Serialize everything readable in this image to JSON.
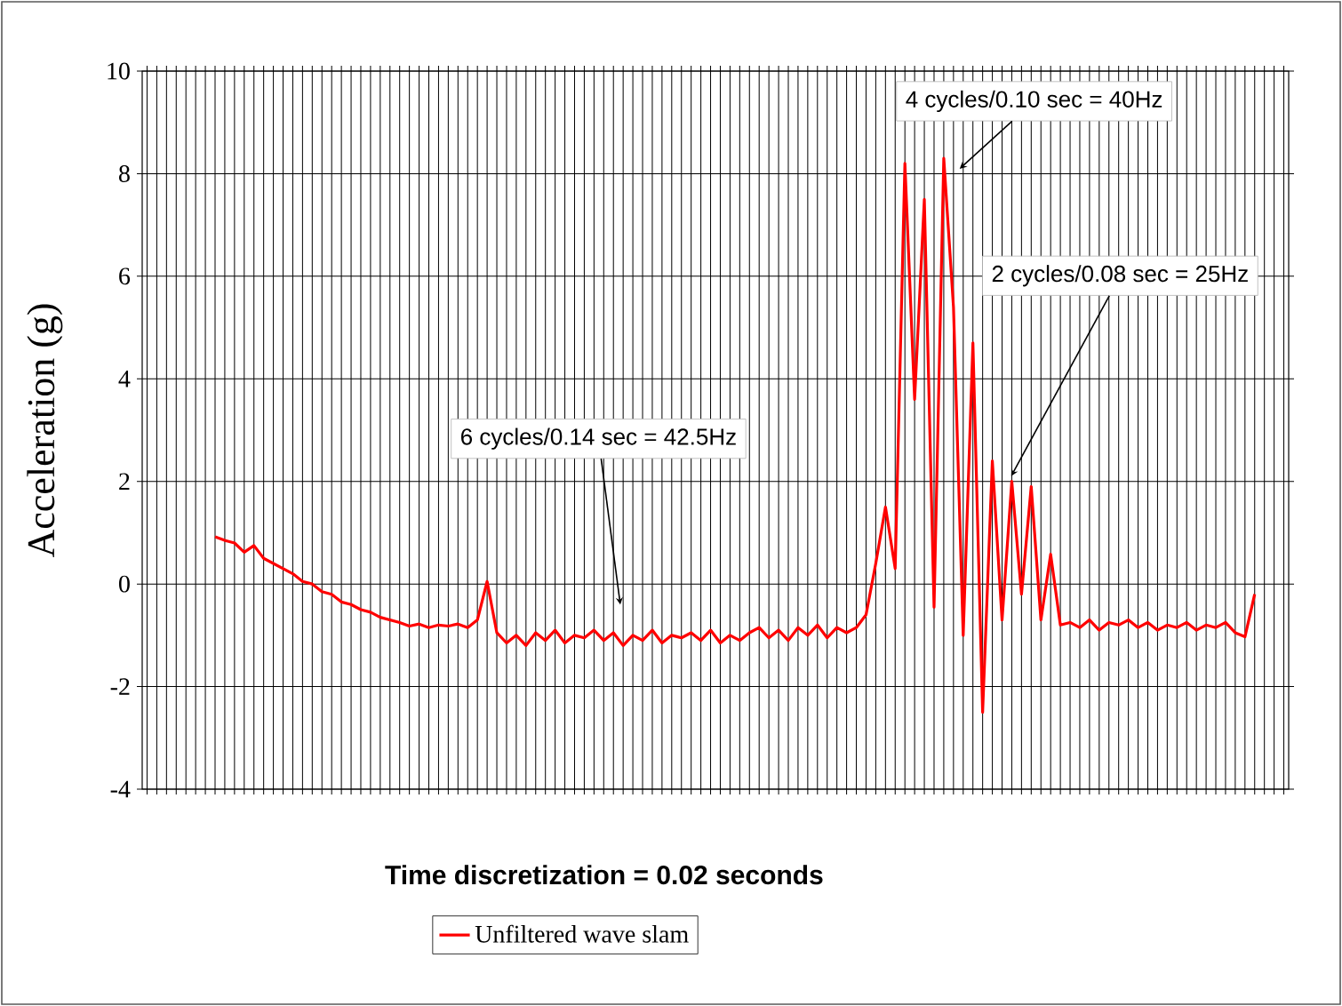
{
  "chart_data": {
    "type": "line",
    "xlabel": "Time discretization = 0.02 seconds",
    "ylabel": "Acceleration (g)",
    "categories": [
      null,
      null,
      null,
      null,
      null,
      null,
      null,
      null,
      null,
      null,
      null,
      null,
      null,
      null,
      null,
      null,
      null,
      null,
      null,
      null,
      null,
      null,
      null,
      null,
      null,
      null,
      null,
      null,
      null,
      null,
      null,
      null,
      null,
      null,
      null,
      null,
      null,
      null,
      null,
      null,
      null,
      null,
      null,
      null,
      null,
      null,
      null,
      null,
      null,
      null,
      null,
      null,
      null,
      null,
      null,
      null,
      null,
      null,
      null,
      null,
      null,
      null,
      null,
      null,
      null,
      null,
      null,
      null,
      null,
      null,
      null,
      null,
      null,
      null,
      null,
      null,
      null,
      null,
      null,
      null,
      null,
      null,
      null,
      null,
      null,
      null,
      null,
      null,
      null,
      null,
      null,
      null,
      null,
      null,
      null,
      null,
      null,
      null,
      null,
      null,
      null,
      null,
      null,
      null,
      null,
      null,
      null,
      null,
      null,
      null,
      null,
      null,
      null,
      null,
      null,
      null,
      null,
      null
    ],
    "series": [
      {
        "name": "Unfiltered wave slam",
        "color": "#ff0000",
        "values": [
          null,
          null,
          null,
          null,
          null,
          null,
          null,
          0.92,
          0.85,
          0.8,
          0.62,
          0.75,
          0.5,
          0.4,
          0.3,
          0.2,
          0.05,
          0.0,
          -0.15,
          -0.2,
          -0.35,
          -0.4,
          -0.5,
          -0.55,
          -0.65,
          -0.7,
          -0.75,
          -0.82,
          -0.78,
          -0.85,
          -0.8,
          -0.82,
          -0.78,
          -0.85,
          -0.7,
          0.05,
          -0.95,
          -1.15,
          -1.0,
          -1.2,
          -0.95,
          -1.1,
          -0.9,
          -1.15,
          -1.0,
          -1.05,
          -0.9,
          -1.1,
          -0.95,
          -1.2,
          -1.0,
          -1.1,
          -0.9,
          -1.15,
          -1.0,
          -1.05,
          -0.95,
          -1.1,
          -0.9,
          -1.15,
          -1.0,
          -1.1,
          -0.95,
          -0.85,
          -1.05,
          -0.9,
          -1.1,
          -0.85,
          -1.0,
          -0.8,
          -1.05,
          -0.85,
          -0.95,
          -0.85,
          -0.6,
          0.4,
          1.5,
          0.3,
          8.2,
          3.6,
          7.5,
          -0.45,
          8.3,
          5.4,
          -1.0,
          4.7,
          -2.5,
          2.4,
          -0.7,
          2.0,
          -0.2,
          1.9,
          -0.7,
          0.58,
          -0.8,
          -0.75,
          -0.85,
          -0.7,
          -0.9,
          -0.75,
          -0.8,
          -0.7,
          -0.85,
          -0.75,
          -0.9,
          -0.8,
          -0.85,
          -0.75,
          -0.9,
          -0.8,
          -0.85,
          -0.75,
          -0.95,
          -1.03,
          -0.2,
          null,
          null,
          null
        ]
      }
    ],
    "ylim": [
      -4,
      10
    ],
    "yticks": [
      -4,
      -2,
      0,
      2,
      4,
      6,
      8,
      10
    ],
    "grid": true,
    "legend": "bottom",
    "tick_labels": "y",
    "marker": "none",
    "line_style": "solid",
    "annotations": [
      "6 cycles/0.14 sec = 42.5Hz",
      "4 cycles/0.10 sec = 40Hz",
      "2 cycles/0.08 sec = 25Hz"
    ]
  }
}
